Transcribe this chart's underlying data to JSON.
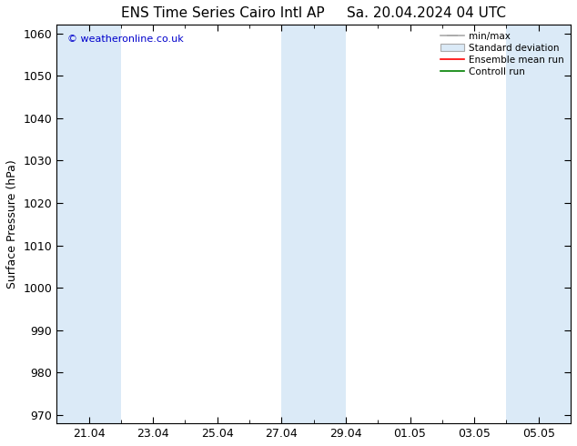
{
  "title": "ENS Time Series Cairo Intl AP     Sa. 20.04.2024 04 UTC",
  "ylabel": "Surface Pressure (hPa)",
  "ylim": [
    968,
    1062
  ],
  "yticks": [
    970,
    980,
    990,
    1000,
    1010,
    1020,
    1030,
    1040,
    1050,
    1060
  ],
  "xtick_labels": [
    "21.04",
    "23.04",
    "25.04",
    "27.04",
    "29.04",
    "01.05",
    "03.05",
    "05.05"
  ],
  "watermark": "© weatheronline.co.uk",
  "bg_color": "#ffffff",
  "shaded_color": "#dbeaf7",
  "legend_labels": [
    "min/max",
    "Standard deviation",
    "Ensemble mean run",
    "Controll run"
  ],
  "title_fontsize": 11,
  "tick_label_fontsize": 9,
  "ylabel_fontsize": 9
}
